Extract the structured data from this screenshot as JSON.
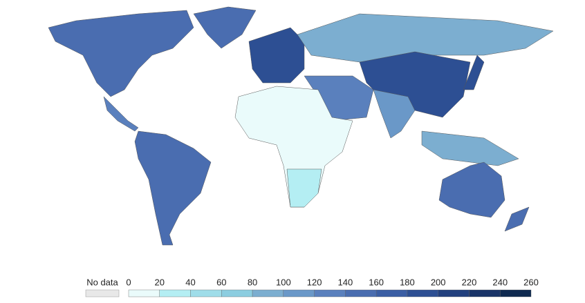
{
  "legend": {
    "no_data": "No data",
    "ticks": [
      0,
      20,
      40,
      60,
      80,
      100,
      120,
      140,
      160,
      180,
      200,
      220,
      240,
      260
    ],
    "colors": [
      "#eafbfb",
      "#b4eef3",
      "#9fdde9",
      "#8ccde0",
      "#7caed0",
      "#6a98c8",
      "#5a80bd",
      "#4a6db0",
      "#3b5ea4",
      "#2d4f93",
      "#22407e",
      "#193468",
      "#0f2a50"
    ],
    "no_data_color": "#e8e8e8"
  }
}
